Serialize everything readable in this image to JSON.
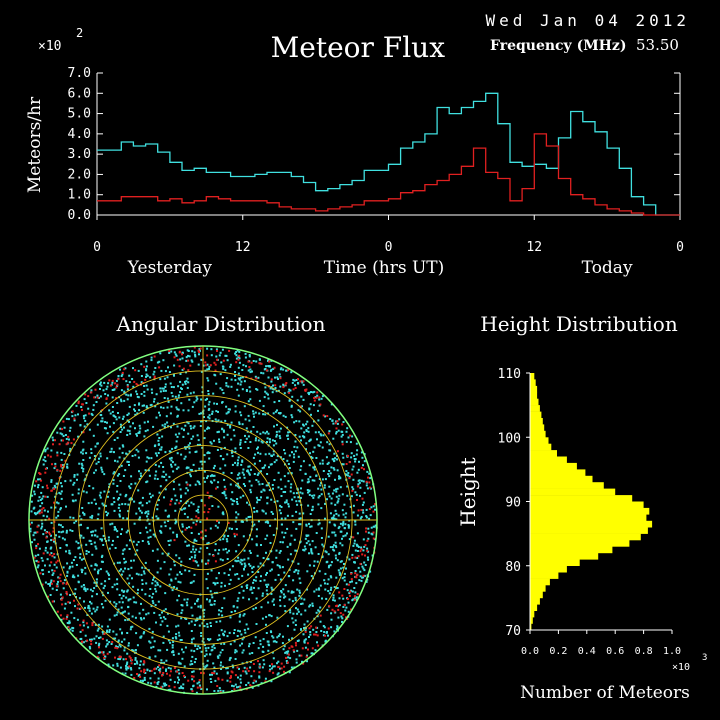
{
  "header": {
    "date": "Wed Jan 04 2012",
    "title": "Meteor Flux",
    "frequency_label": "Frequency (MHz)",
    "frequency_value": "53.50",
    "colors": {
      "text": "#ffffff",
      "background": "#000000"
    }
  },
  "chart_data": [
    {
      "type": "line",
      "title": "Meteor Flux",
      "ylabel": "Meteors/hr",
      "xlabel": "Time (hrs UT)",
      "y_multiplier": "×10",
      "y_exponent": "2",
      "ylim": [
        0,
        7
      ],
      "y_ticks": [
        "0.0",
        "1.0",
        "2.0",
        "3.0",
        "4.0",
        "5.0",
        "6.0",
        "7.0"
      ],
      "x_range_hours": [
        0,
        48
      ],
      "x_ticks": [
        {
          "x": 0,
          "label": "0"
        },
        {
          "x": 12,
          "label": "12"
        },
        {
          "x": 24,
          "label": "0"
        },
        {
          "x": 36,
          "label": "12"
        },
        {
          "x": 48,
          "label": "0"
        }
      ],
      "day_labels": [
        {
          "x": 6,
          "label": "Yesterday"
        },
        {
          "x": 42,
          "label": "Today"
        }
      ],
      "series": [
        {
          "color": "#40e0e0",
          "values": [
            3.2,
            3.2,
            3.6,
            3.4,
            3.5,
            3.1,
            2.6,
            2.2,
            2.3,
            2.1,
            2.1,
            1.9,
            1.9,
            2.0,
            2.1,
            2.1,
            1.9,
            1.6,
            1.2,
            1.3,
            1.5,
            1.7,
            2.2,
            2.2,
            2.5,
            3.3,
            3.6,
            4.0,
            5.3,
            5.0,
            5.3,
            5.6,
            6.0,
            4.5,
            2.6,
            2.4,
            2.5,
            2.3,
            3.8,
            5.1,
            4.6,
            4.1,
            3.3,
            2.3,
            0.9,
            0.5,
            0.0,
            0.0
          ]
        },
        {
          "color": "#e02020",
          "values": [
            0.7,
            0.7,
            0.9,
            0.9,
            0.9,
            0.7,
            0.8,
            0.6,
            0.7,
            0.9,
            0.8,
            0.7,
            0.7,
            0.7,
            0.6,
            0.4,
            0.3,
            0.3,
            0.2,
            0.3,
            0.4,
            0.5,
            0.7,
            0.7,
            0.8,
            1.1,
            1.2,
            1.5,
            1.7,
            2.0,
            2.4,
            3.3,
            2.1,
            1.8,
            0.7,
            1.3,
            4.0,
            3.4,
            1.8,
            1.0,
            0.8,
            0.5,
            0.3,
            0.2,
            0.1,
            0.0,
            0.0,
            0.0
          ]
        }
      ]
    },
    {
      "type": "scatter",
      "subtype": "polar",
      "title": "Angular Distribution",
      "ring_count": 7,
      "colors": {
        "points": "#40e0e0",
        "highlight": "#e02020",
        "grid": "#e0c020",
        "rim": "#80ff80"
      }
    },
    {
      "type": "bar",
      "orientation": "horizontal",
      "title": "Height Distribution",
      "ylabel": "Height",
      "xlabel": "Number of Meteors",
      "x_multiplier": "×10",
      "x_exponent": "3",
      "xlim": [
        0,
        1.0
      ],
      "x_ticks": [
        "0.0",
        "0.2",
        "0.4",
        "0.6",
        "0.8",
        "1.0"
      ],
      "ylim": [
        70,
        110
      ],
      "y_ticks": [
        "70",
        "80",
        "90",
        "100",
        "110"
      ],
      "bar_color": "#ffff00",
      "heights": [
        110,
        109,
        108,
        107,
        106,
        105,
        104,
        103,
        102,
        101,
        100,
        99,
        98,
        97,
        96,
        95,
        94,
        93,
        92,
        91,
        90,
        89,
        88,
        87,
        86,
        85,
        84,
        83,
        82,
        81,
        80,
        79,
        78,
        77,
        76,
        75,
        74,
        73,
        72,
        71
      ],
      "counts": [
        0.03,
        0.04,
        0.05,
        0.05,
        0.06,
        0.07,
        0.08,
        0.09,
        0.1,
        0.11,
        0.13,
        0.15,
        0.19,
        0.26,
        0.33,
        0.39,
        0.44,
        0.52,
        0.6,
        0.72,
        0.8,
        0.84,
        0.82,
        0.86,
        0.83,
        0.78,
        0.7,
        0.58,
        0.48,
        0.35,
        0.26,
        0.2,
        0.14,
        0.11,
        0.09,
        0.07,
        0.05,
        0.03,
        0.02,
        0.01
      ]
    }
  ]
}
